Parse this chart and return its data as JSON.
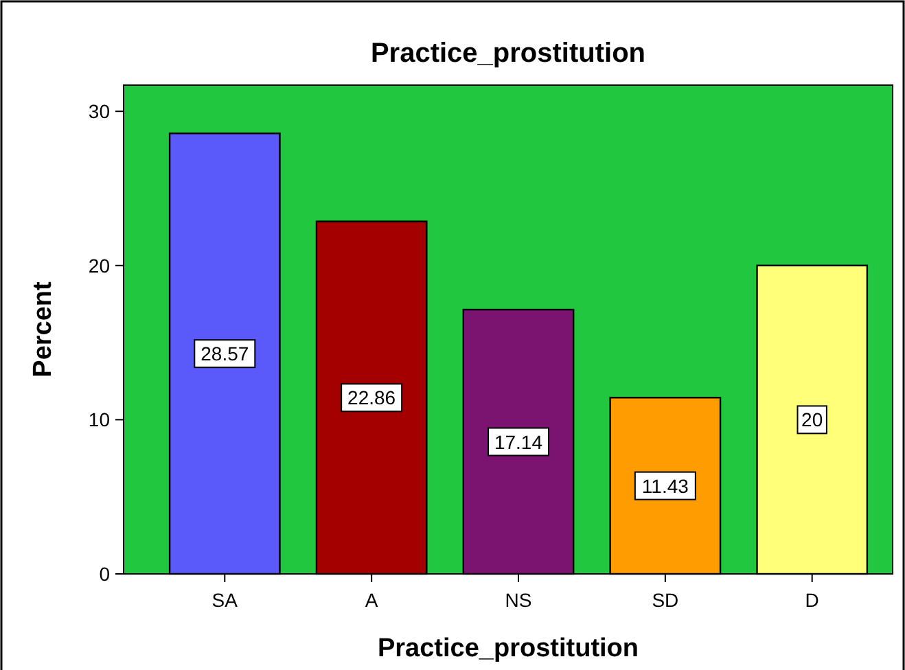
{
  "chart_data": {
    "type": "bar",
    "title": "Practice_prostitution",
    "xlabel": "Practice_prostitution",
    "ylabel": "Percent",
    "categories": [
      "SA",
      "A",
      "NS",
      "SD",
      "D"
    ],
    "values": [
      28.57,
      22.86,
      17.14,
      11.43,
      20
    ],
    "colors": [
      "#5a5afa",
      "#a50000",
      "#7a1470",
      "#ff9c00",
      "#ffff78"
    ],
    "ylim": [
      0,
      31.7
    ],
    "yticks": [
      0,
      10,
      20,
      30
    ],
    "data_labels": true
  }
}
